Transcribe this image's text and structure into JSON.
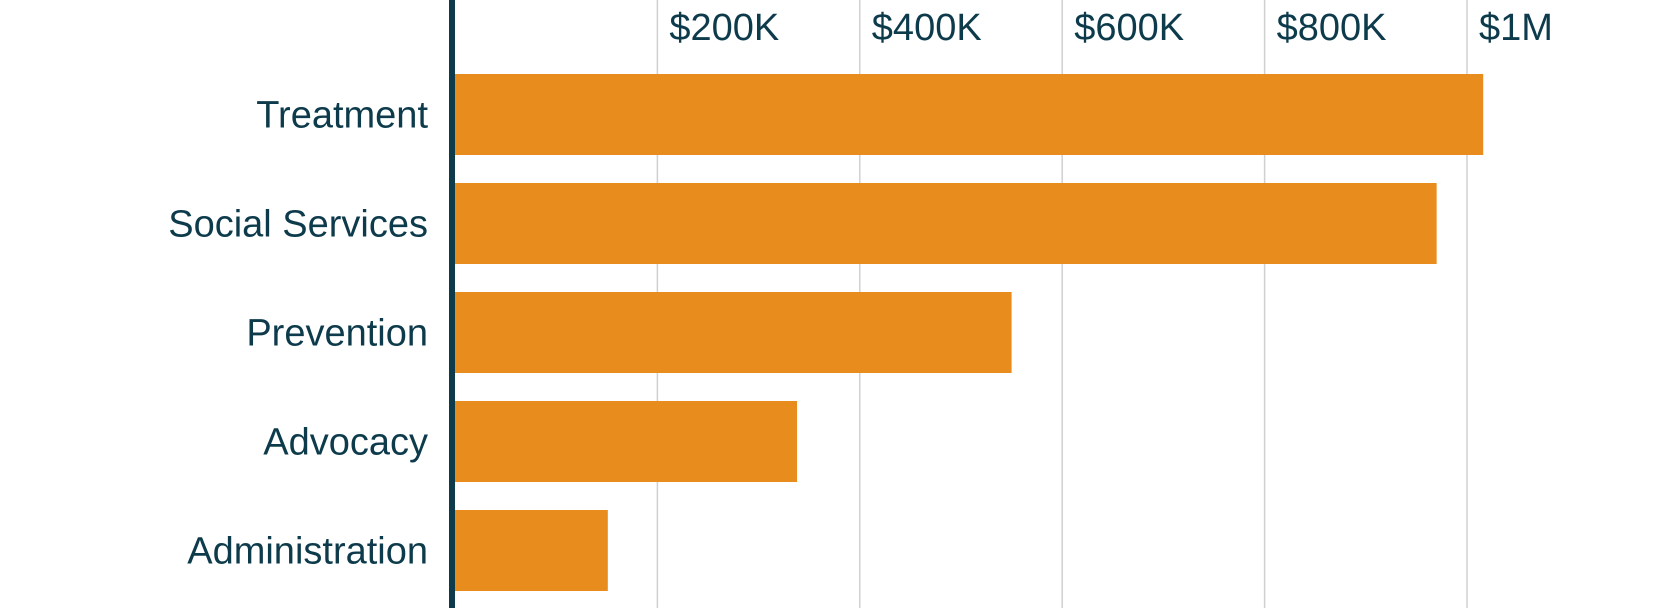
{
  "chart_data": {
    "type": "bar",
    "orientation": "horizontal",
    "categories": [
      "Treatment",
      "Social Services",
      "Prevention",
      "Advocacy",
      "Administration"
    ],
    "values": [
      1016000,
      970000,
      550000,
      338000,
      151000
    ],
    "xlim": [
      0,
      1200000
    ],
    "x_ticks": [
      {
        "value": 200000,
        "label": "$200K"
      },
      {
        "value": 400000,
        "label": "$400K"
      },
      {
        "value": 600000,
        "label": "$600K"
      },
      {
        "value": 800000,
        "label": "$800K"
      },
      {
        "value": 1000000,
        "label": "$1M"
      }
    ],
    "title": "",
    "xlabel": "",
    "ylabel": "",
    "grid": "vertical",
    "colors": {
      "bar": "#E88C1E",
      "axis": "#0D3B4B",
      "grid": "#D0D0D0",
      "text": "#0D3B4B"
    }
  }
}
